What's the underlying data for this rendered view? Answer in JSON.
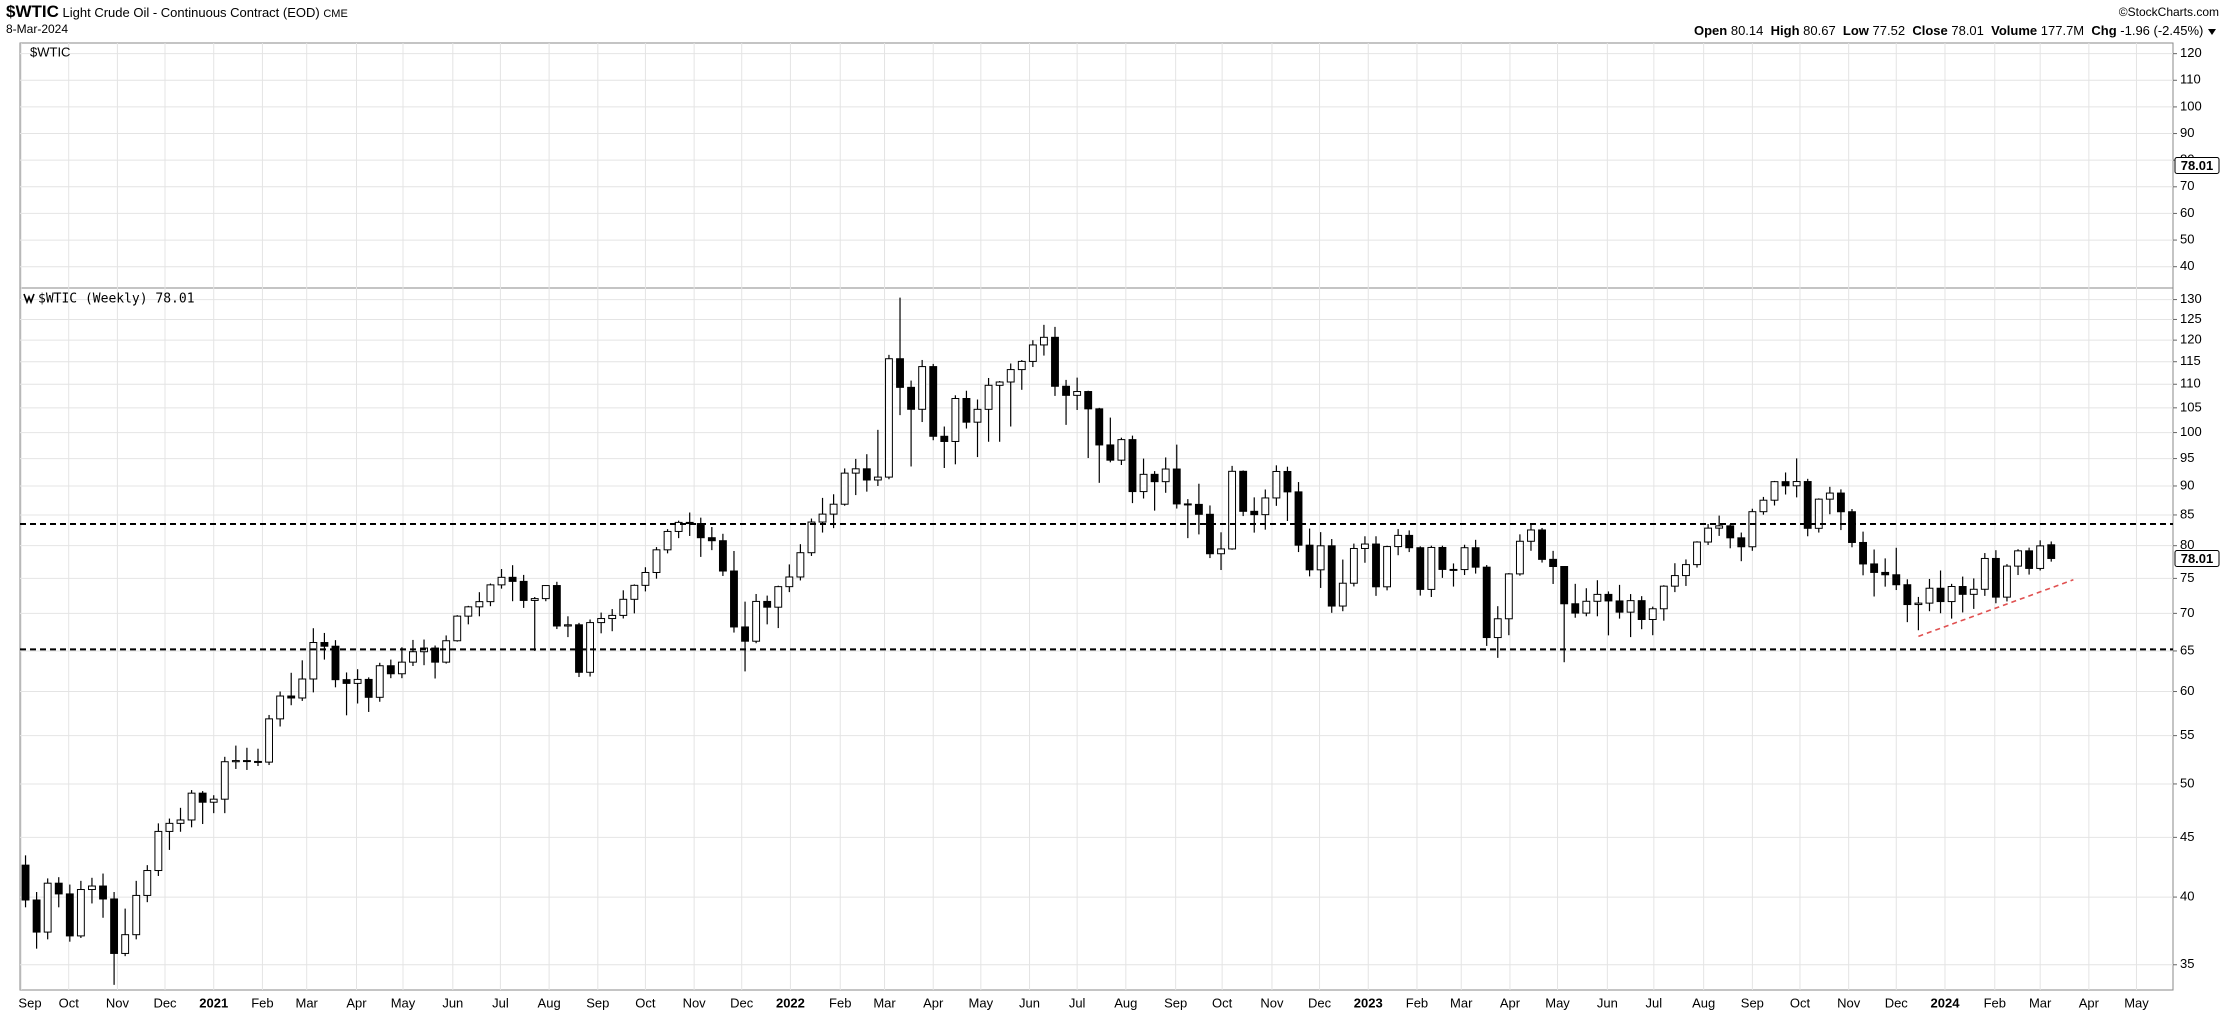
{
  "header": {
    "symbol": "$WTIC",
    "name": "Light Crude Oil - Continuous Contract (EOD)",
    "exchange": "CME",
    "date": "8-Mar-2024",
    "source": "©StockCharts.com",
    "stats": [
      {
        "label": "Open",
        "value": 80.14
      },
      {
        "label": "High",
        "value": 80.67
      },
      {
        "label": "Low",
        "value": 77.52
      },
      {
        "label": "Close",
        "value": 78.01
      },
      {
        "label": "Volume",
        "value": "177.7M"
      },
      {
        "label": "Chg",
        "value": "-1.96 (-2.45%)"
      }
    ]
  },
  "chart_data": [
    {
      "type": "panel",
      "label": "$WTIC",
      "ylim": [
        32,
        124
      ],
      "yticks": [
        40,
        50,
        60,
        70,
        80,
        90,
        100,
        110,
        120
      ],
      "last_value": 78.01,
      "grid": true
    },
    {
      "type": "candlestick",
      "title": "$WTIC (Weekly) 78.01",
      "log_scale": true,
      "grid": true,
      "up_color": "#ffffff",
      "down_color": "#000000",
      "ylim": [
        33.3,
        133
      ],
      "yticks": [
        35,
        40,
        45,
        50,
        55,
        60,
        65,
        70,
        75,
        80,
        85,
        90,
        95,
        100,
        105,
        110,
        115,
        120,
        125,
        130
      ],
      "xlim": [
        -0.5,
        194
      ],
      "xticks": [
        {
          "value": -0.4,
          "label": "Sep"
        },
        {
          "value": 3.9,
          "label": "Oct"
        },
        {
          "value": 8.3,
          "label": "Nov"
        },
        {
          "value": 12.6,
          "label": "Dec"
        },
        {
          "value": 17.0,
          "label": "2021"
        },
        {
          "value": 21.4,
          "label": "Feb"
        },
        {
          "value": 25.4,
          "label": "Mar"
        },
        {
          "value": 29.9,
          "label": "Apr"
        },
        {
          "value": 34.1,
          "label": "May"
        },
        {
          "value": 38.6,
          "label": "Jun"
        },
        {
          "value": 42.9,
          "label": "Jul"
        },
        {
          "value": 47.3,
          "label": "Aug"
        },
        {
          "value": 51.7,
          "label": "Sep"
        },
        {
          "value": 56.0,
          "label": "Oct"
        },
        {
          "value": 60.4,
          "label": "Nov"
        },
        {
          "value": 64.7,
          "label": "Dec"
        },
        {
          "value": 69.1,
          "label": "2022"
        },
        {
          "value": 73.6,
          "label": "Feb"
        },
        {
          "value": 77.6,
          "label": "Mar"
        },
        {
          "value": 82.0,
          "label": "Apr"
        },
        {
          "value": 86.3,
          "label": "May"
        },
        {
          "value": 90.7,
          "label": "Jun"
        },
        {
          "value": 95.0,
          "label": "Jul"
        },
        {
          "value": 99.4,
          "label": "Aug"
        },
        {
          "value": 103.9,
          "label": "Sep"
        },
        {
          "value": 108.1,
          "label": "Oct"
        },
        {
          "value": 112.6,
          "label": "Nov"
        },
        {
          "value": 116.9,
          "label": "Dec"
        },
        {
          "value": 121.3,
          "label": "2023"
        },
        {
          "value": 125.7,
          "label": "Feb"
        },
        {
          "value": 129.7,
          "label": "Mar"
        },
        {
          "value": 134.1,
          "label": "Apr"
        },
        {
          "value": 138.4,
          "label": "May"
        },
        {
          "value": 142.9,
          "label": "Jun"
        },
        {
          "value": 147.1,
          "label": "Jul"
        },
        {
          "value": 151.6,
          "label": "Aug"
        },
        {
          "value": 156.0,
          "label": "Sep"
        },
        {
          "value": 160.3,
          "label": "Oct"
        },
        {
          "value": 164.7,
          "label": "Nov"
        },
        {
          "value": 169.0,
          "label": "Dec"
        },
        {
          "value": 173.4,
          "label": "2024"
        },
        {
          "value": 177.9,
          "label": "Feb"
        },
        {
          "value": 182.0,
          "label": "Mar"
        },
        {
          "value": 186.4,
          "label": "Apr"
        },
        {
          "value": 190.7,
          "label": "May"
        }
      ],
      "open": [
        42.6,
        39.77,
        37.33,
        41.11,
        40.25,
        37.05,
        40.6,
        40.88,
        39.85,
        35.79,
        37.14,
        40.13,
        42.15,
        45.53,
        46.26,
        46.57,
        49.1,
        48.23,
        48.52,
        52.24,
        52.36,
        52.27,
        52.2,
        56.85,
        59.47,
        59.24,
        61.5,
        66.09,
        65.61,
        61.42,
        60.97,
        61.45,
        59.32,
        63.13,
        62.14,
        63.58,
        64.9,
        65.37,
        63.58,
        66.32,
        69.62,
        70.91,
        71.64,
        74.05,
        75.16,
        74.56,
        71.81,
        72.07,
        73.95,
        68.28,
        68.44,
        62.32,
        68.74,
        69.29,
        69.72,
        71.97,
        73.98,
        75.88,
        79.35,
        82.28,
        83.76,
        83.57,
        81.27,
        80.79,
        76.1,
        68.15,
        66.26,
        71.67,
        70.86,
        73.79,
        75.21,
        78.9,
        83.82,
        85.14,
        86.82,
        92.31,
        93.1,
        91.07,
        91.59,
        115.68,
        109.33,
        104.7,
        113.9,
        99.27,
        98.26,
        106.95,
        102.07,
        104.69,
        109.77,
        110.49,
        113.23,
        115.07,
        118.87,
        120.67,
        109.56,
        107.62,
        108.43,
        104.79,
        97.59,
        94.7,
        98.62,
        89.01,
        92.09,
        90.77,
        93.06,
        86.87,
        86.79,
        85.11,
        78.74,
        79.49,
        92.64,
        85.61,
        85.05,
        87.9,
        92.61,
        88.96,
        80.08,
        76.28,
        79.98,
        71.02,
        74.29,
        79.56,
        80.26,
        73.77,
        79.86,
        81.64,
        79.68,
        73.39,
        79.72,
        76.34,
        76.32,
        79.68,
        76.68,
        66.74,
        69.26,
        75.67,
        80.7,
        82.52,
        77.87,
        76.78,
        71.34,
        70.04,
        71.69,
        72.67,
        71.74,
        70.17,
        71.78,
        69.16,
        70.64,
        73.86,
        75.42,
        77.07,
        80.58,
        82.82,
        83.19,
        81.25,
        79.83,
        85.55,
        87.51,
        90.77,
        90.03,
        90.79,
        82.79,
        87.69,
        88.75,
        85.54,
        80.51,
        77.17,
        75.89,
        75.54,
        74.07,
        71.23,
        71.43,
        73.56,
        71.65,
        73.81,
        72.68,
        73.41,
        78.01,
        72.28,
        76.84,
        79.19,
        76.49,
        80.14
      ],
      "high": [
        43.43,
        40.4,
        41.5,
        41.6,
        41.0,
        41.3,
        41.55,
        41.9,
        40.4,
        39.1,
        41.3,
        42.6,
        46.26,
        46.7,
        47.7,
        49.4,
        49.3,
        48.9,
        52.75,
        53.93,
        53.7,
        53.6,
        57.29,
        60.0,
        62.26,
        63.81,
        67.98,
        67.35,
        66.4,
        62.3,
        62.7,
        61.7,
        63.5,
        63.9,
        65.47,
        66.43,
        66.48,
        65.7,
        67.02,
        69.76,
        71.05,
        72.99,
        74.25,
        76.4,
        76.98,
        75.52,
        72.3,
        74.0,
        74.5,
        69.6,
        68.7,
        69.16,
        70.11,
        70.6,
        73.26,
        74.12,
        76.67,
        79.78,
        82.65,
        84.05,
        85.41,
        84.55,
        83.0,
        81.9,
        79.17,
        71.64,
        72.73,
        72.5,
        73.93,
        77.1,
        80.24,
        84.4,
        87.91,
        88.54,
        93.17,
        94.94,
        95.82,
        100.54,
        116.57,
        130.5,
        110.8,
        115.4,
        114.5,
        101.2,
        107.63,
        108.6,
        106.74,
        111.37,
        110.7,
        114.6,
        115.38,
        119.98,
        123.68,
        123.18,
        110.95,
        111.45,
        108.6,
        105.0,
        103.0,
        99.0,
        99.4,
        95.0,
        92.68,
        95.21,
        97.65,
        87.7,
        90.4,
        86.61,
        82.14,
        93.64,
        92.8,
        88.0,
        89.38,
        93.74,
        93.49,
        90.7,
        82.75,
        82.17,
        81.06,
        77.84,
        80.33,
        81.5,
        81.5,
        80.0,
        82.66,
        82.45,
        79.9,
        80.0,
        80.0,
        77.25,
        80.15,
        80.93,
        77.0,
        71.0,
        75.79,
        81.81,
        83.53,
        82.85,
        79.19,
        76.86,
        74.2,
        73.56,
        74.73,
        73.1,
        74.05,
        72.72,
        72.42,
        70.94,
        74.0,
        77.28,
        77.86,
        80.71,
        83.5,
        84.89,
        83.5,
        82.1,
        86.05,
        88.08,
        90.9,
        92.43,
        95.03,
        91.28,
        87.83,
        89.85,
        89.4,
        86.0,
        82.25,
        79.4,
        78.02,
        79.67,
        74.87,
        72.31,
        74.92,
        76.18,
        74.2,
        75.27,
        75.0,
        78.85,
        79.29,
        77.14,
        79.45,
        79.69,
        80.85,
        80.67
      ],
      "low": [
        39.2,
        36.13,
        36.8,
        39.2,
        36.63,
        36.9,
        39.5,
        38.4,
        33.64,
        35.6,
        36.8,
        39.6,
        41.7,
        43.9,
        45.5,
        45.9,
        46.2,
        47.2,
        47.2,
        51.5,
        51.4,
        51.8,
        51.9,
        56.0,
        58.4,
        58.9,
        59.9,
        63.9,
        60.5,
        57.25,
        58.6,
        57.63,
        58.8,
        61.6,
        61.6,
        63.1,
        63.2,
        61.56,
        63.4,
        66.2,
        68.5,
        69.6,
        71.0,
        73.5,
        71.7,
        70.76,
        65.01,
        71.7,
        67.87,
        66.8,
        61.74,
        61.8,
        67.3,
        67.58,
        69.3,
        70.0,
        73.1,
        74.96,
        78.8,
        81.2,
        81.55,
        78.25,
        79.3,
        75.36,
        67.4,
        62.43,
        66.0,
        68.5,
        68.0,
        73.0,
        74.7,
        78.4,
        82.1,
        82.82,
        86.56,
        88.4,
        89.0,
        90.0,
        91.2,
        103.5,
        93.53,
        102.1,
        98.5,
        93.25,
        93.93,
        100.8,
        95.28,
        98.2,
        98.2,
        101.2,
        108.8,
        113.8,
        116.4,
        107.5,
        101.53,
        104.56,
        95.1,
        90.56,
        94.3,
        93.8,
        87.01,
        87.8,
        85.73,
        88.8,
        86.08,
        81.2,
        81.8,
        78.07,
        76.25,
        79.36,
        84.81,
        82.09,
        82.57,
        86.54,
        84.0,
        79.0,
        75.3,
        73.6,
        70.08,
        70.3,
        73.82,
        77.35,
        72.46,
        73.25,
        78.51,
        79.0,
        72.5,
        72.3,
        75.08,
        73.8,
        75.5,
        75.72,
        65.65,
        64.12,
        67.05,
        75.4,
        79.2,
        77.38,
        74.18,
        63.57,
        69.4,
        69.6,
        69.6,
        67.03,
        69.28,
        66.8,
        67.85,
        67.05,
        69.0,
        73.0,
        73.89,
        76.62,
        80.11,
        81.56,
        79.59,
        77.59,
        79.2,
        85.05,
        86.6,
        88.5,
        88.0,
        81.5,
        82.1,
        85.12,
        82.5,
        79.75,
        75.46,
        72.37,
        73.79,
        73.3,
        68.8,
        67.71,
        70.3,
        70.02,
        69.28,
        70.13,
        70.62,
        72.46,
        71.41,
        71.67,
        75.5,
        75.57,
        76.18,
        77.52
      ],
      "close": [
        39.77,
        37.33,
        41.11,
        40.25,
        37.05,
        40.6,
        40.88,
        39.85,
        35.79,
        37.14,
        40.13,
        42.15,
        45.53,
        46.26,
        46.57,
        49.1,
        48.23,
        48.52,
        52.24,
        52.36,
        52.27,
        52.2,
        56.85,
        59.47,
        59.24,
        61.5,
        66.09,
        65.61,
        61.42,
        60.97,
        61.45,
        59.32,
        63.13,
        62.14,
        63.58,
        64.9,
        65.37,
        63.58,
        66.32,
        69.62,
        70.91,
        71.64,
        74.05,
        75.16,
        74.56,
        71.81,
        72.07,
        73.95,
        68.28,
        68.44,
        62.32,
        68.74,
        69.29,
        69.72,
        71.97,
        73.98,
        75.88,
        79.35,
        82.28,
        83.76,
        83.57,
        81.27,
        80.79,
        76.1,
        68.15,
        66.26,
        71.67,
        70.86,
        73.79,
        75.21,
        78.9,
        83.82,
        85.14,
        86.82,
        92.31,
        93.1,
        91.07,
        91.59,
        115.68,
        109.33,
        104.7,
        113.9,
        99.27,
        98.26,
        106.95,
        102.07,
        104.69,
        109.77,
        110.49,
        113.23,
        115.07,
        118.87,
        120.67,
        109.56,
        107.62,
        108.43,
        104.79,
        97.59,
        94.7,
        98.62,
        89.01,
        92.09,
        90.77,
        93.06,
        86.87,
        86.79,
        85.11,
        78.74,
        79.49,
        92.64,
        85.61,
        85.05,
        87.9,
        92.61,
        88.96,
        80.08,
        76.28,
        79.98,
        71.02,
        74.29,
        79.56,
        80.26,
        73.77,
        79.86,
        81.64,
        79.68,
        73.39,
        79.72,
        76.34,
        76.32,
        79.68,
        76.68,
        66.74,
        69.26,
        75.67,
        80.7,
        82.52,
        77.87,
        76.78,
        71.34,
        70.04,
        71.69,
        72.67,
        71.74,
        70.17,
        71.78,
        69.16,
        70.64,
        73.86,
        75.42,
        77.07,
        80.58,
        82.82,
        83.19,
        81.25,
        79.83,
        85.55,
        87.51,
        90.77,
        90.03,
        90.79,
        82.79,
        87.69,
        88.75,
        85.54,
        80.51,
        77.17,
        75.89,
        75.54,
        74.07,
        71.23,
        71.43,
        73.56,
        71.65,
        73.81,
        72.68,
        73.41,
        78.01,
        72.28,
        76.84,
        79.19,
        76.49,
        79.97,
        78.01
      ],
      "last_value": 78.01,
      "hlines": [
        83.5,
        65.2
      ],
      "hline_color": "#000000",
      "trendline": {
        "from": [
          171,
          66.9
        ],
        "to": [
          185,
          74.8
        ],
        "color": "#e05050"
      }
    }
  ]
}
